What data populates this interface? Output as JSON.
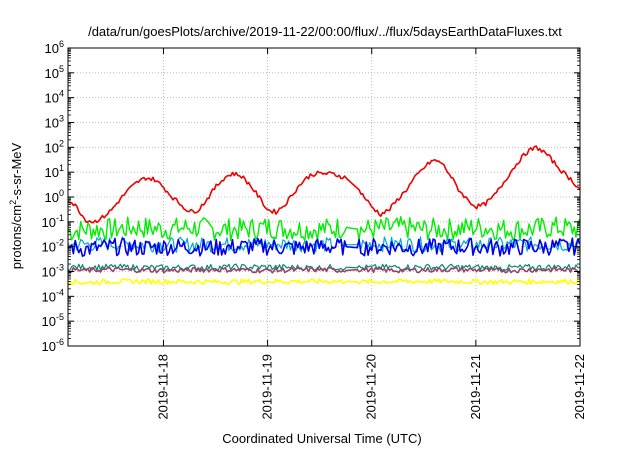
{
  "chart_data": {
    "type": "line",
    "title": "/data/run/goesPlots/archive/2019-11-22/00:00/flux/../flux/5daysEarthDataFluxes.txt",
    "xlabel": "Coordinated Universal Time (UTC)",
    "ylabel": {
      "base": "protons/cm",
      "sup": "2",
      "rest": "-s-sr-MeV"
    },
    "x_scale": "time",
    "xlim": [
      "2019-11-17T02:00",
      "2019-11-22T00:00"
    ],
    "x_ticks": [
      "2019-11-18",
      "2019-11-19",
      "2019-11-20",
      "2019-11-21",
      "2019-11-22"
    ],
    "y_scale": "log",
    "ylim": [
      1e-06,
      1000000.0
    ],
    "y_ticks": [
      {
        "value": 1e-06,
        "base": "10",
        "exp": "-6"
      },
      {
        "value": 1e-05,
        "base": "10",
        "exp": "-5"
      },
      {
        "value": 0.0001,
        "base": "10",
        "exp": "-4"
      },
      {
        "value": 0.001,
        "base": "10",
        "exp": "-3"
      },
      {
        "value": 0.01,
        "base": "10",
        "exp": "-2"
      },
      {
        "value": 0.1,
        "base": "10",
        "exp": "-1"
      },
      {
        "value": 1,
        "base": "10",
        "exp": "0"
      },
      {
        "value": 10,
        "base": "10",
        "exp": "1"
      },
      {
        "value": 100,
        "base": "10",
        "exp": "2"
      },
      {
        "value": 1000,
        "base": "10",
        "exp": "3"
      },
      {
        "value": 10000,
        "base": "10",
        "exp": "4"
      },
      {
        "value": 100000,
        "base": "10",
        "exp": "5"
      },
      {
        "value": 1000000,
        "base": "10",
        "exp": "6"
      }
    ],
    "grid": true,
    "gap": [
      "2019-11-19T18:00",
      "2019-11-19T21:00"
    ],
    "series": [
      {
        "color": "#00ee00",
        "width": 1.4,
        "points": [
          [
            "2019-11-17T02:00",
            0.04
          ],
          [
            "2019-11-17T06:00",
            0.05
          ],
          [
            "2019-11-17T12:00",
            0.05
          ],
          [
            "2019-11-17T18:00",
            0.06
          ],
          [
            "2019-11-18T00:00",
            0.05
          ],
          [
            "2019-11-18T06:00",
            0.06
          ],
          [
            "2019-11-18T12:00",
            0.05
          ],
          [
            "2019-11-18T18:00",
            0.05
          ],
          [
            "2019-11-19T00:00",
            0.06
          ],
          [
            "2019-11-19T06:00",
            0.05
          ],
          [
            "2019-11-19T12:00",
            0.05
          ],
          [
            "2019-11-19T18:00",
            0.06
          ],
          [
            "2019-11-19T21:00",
            0.05
          ],
          [
            "2019-11-20T00:00",
            0.05
          ],
          [
            "2019-11-20T06:00",
            0.06
          ],
          [
            "2019-11-20T12:00",
            0.05
          ],
          [
            "2019-11-20T18:00",
            0.05
          ],
          [
            "2019-11-21T00:00",
            0.06
          ],
          [
            "2019-11-21T06:00",
            0.05
          ],
          [
            "2019-11-21T12:00",
            0.05
          ],
          [
            "2019-11-21T18:00",
            0.06
          ],
          [
            "2019-11-22T00:00",
            0.05
          ]
        ]
      },
      {
        "color": "#00aacc",
        "width": 1.2,
        "points": [
          [
            "2019-11-17T02:00",
            0.012
          ],
          [
            "2019-11-17T12:00",
            0.013
          ],
          [
            "2019-11-18T00:00",
            0.012
          ],
          [
            "2019-11-18T12:00",
            0.012
          ],
          [
            "2019-11-19T00:00",
            0.013
          ],
          [
            "2019-11-19T12:00",
            0.012
          ],
          [
            "2019-11-19T18:00",
            0.012
          ],
          [
            "2019-11-19T21:00",
            0.012
          ],
          [
            "2019-11-20T06:00",
            0.013
          ],
          [
            "2019-11-20T18:00",
            0.012
          ],
          [
            "2019-11-21T06:00",
            0.012
          ],
          [
            "2019-11-21T18:00",
            0.013
          ],
          [
            "2019-11-22T00:00",
            0.012
          ]
        ]
      },
      {
        "color": "#0000ee",
        "width": 1.6,
        "points": [
          [
            "2019-11-17T02:00",
            0.01
          ],
          [
            "2019-11-17T06:00",
            0.008
          ],
          [
            "2019-11-17T12:00",
            0.01
          ],
          [
            "2019-11-17T18:00",
            0.009
          ],
          [
            "2019-11-18T00:00",
            0.01
          ],
          [
            "2019-11-18T06:00",
            0.01
          ],
          [
            "2019-11-18T12:00",
            0.009
          ],
          [
            "2019-11-18T18:00",
            0.01
          ],
          [
            "2019-11-19T00:00",
            0.01
          ],
          [
            "2019-11-19T06:00",
            0.009
          ],
          [
            "2019-11-19T12:00",
            0.01
          ],
          [
            "2019-11-19T18:00",
            0.01
          ],
          [
            "2019-11-19T21:00",
            0.009
          ],
          [
            "2019-11-20T00:00",
            0.01
          ],
          [
            "2019-11-20T06:00",
            0.01
          ],
          [
            "2019-11-20T12:00",
            0.009
          ],
          [
            "2019-11-20T18:00",
            0.01
          ],
          [
            "2019-11-21T00:00",
            0.01
          ],
          [
            "2019-11-21T06:00",
            0.009
          ],
          [
            "2019-11-21T12:00",
            0.01
          ],
          [
            "2019-11-21T18:00",
            0.01
          ],
          [
            "2019-11-22T00:00",
            0.01
          ]
        ]
      },
      {
        "color": "#008877",
        "width": 1.2,
        "points": [
          [
            "2019-11-17T02:00",
            0.0015
          ],
          [
            "2019-11-17T12:00",
            0.0015
          ],
          [
            "2019-11-18T00:00",
            0.0014
          ],
          [
            "2019-11-18T12:00",
            0.0015
          ],
          [
            "2019-11-19T00:00",
            0.0015
          ],
          [
            "2019-11-19T12:00",
            0.0014
          ],
          [
            "2019-11-19T18:00",
            0.0015
          ],
          [
            "2019-11-19T21:00",
            0.0014
          ],
          [
            "2019-11-20T06:00",
            0.0015
          ],
          [
            "2019-11-20T18:00",
            0.0015
          ],
          [
            "2019-11-21T06:00",
            0.0014
          ],
          [
            "2019-11-21T18:00",
            0.0015
          ],
          [
            "2019-11-22T00:00",
            0.0015
          ]
        ]
      },
      {
        "color": "#ffff00",
        "width": 1.6,
        "points": [
          [
            "2019-11-17T02:00",
            0.0004
          ],
          [
            "2019-11-17T06:00",
            0.00035
          ],
          [
            "2019-11-17T12:00",
            0.0004
          ],
          [
            "2019-11-18T00:00",
            0.0004
          ],
          [
            "2019-11-18T12:00",
            0.00038
          ],
          [
            "2019-11-19T00:00",
            0.0004
          ],
          [
            "2019-11-19T12:00",
            0.0004
          ],
          [
            "2019-11-19T18:00",
            0.0004
          ],
          [
            "2019-11-19T21:00",
            0.00038
          ],
          [
            "2019-11-20T06:00",
            0.0004
          ],
          [
            "2019-11-20T18:00",
            0.0004
          ],
          [
            "2019-11-21T06:00",
            0.00038
          ],
          [
            "2019-11-21T18:00",
            0.0004
          ],
          [
            "2019-11-22T00:00",
            0.0004
          ]
        ]
      },
      {
        "color": "#994466",
        "width": 1.6,
        "points": [
          [
            "2019-11-17T02:00",
            0.0012
          ],
          [
            "2019-11-17T06:00",
            0.0011
          ],
          [
            "2019-11-17T12:00",
            0.0012
          ],
          [
            "2019-11-18T00:00",
            0.0011
          ],
          [
            "2019-11-18T12:00",
            0.0012
          ],
          [
            "2019-11-19T00:00",
            0.0011
          ],
          [
            "2019-11-19T12:00",
            0.0012
          ],
          [
            "2019-11-19T18:00",
            0.0011
          ],
          [
            "2019-11-19T21:00",
            0.0012
          ],
          [
            "2019-11-20T06:00",
            0.0011
          ],
          [
            "2019-11-20T18:00",
            0.0012
          ],
          [
            "2019-11-21T06:00",
            0.0011
          ],
          [
            "2019-11-21T18:00",
            0.0012
          ],
          [
            "2019-11-22T00:00",
            0.0011
          ]
        ]
      },
      {
        "color": "#ee0000",
        "width": 1.6,
        "points": [
          [
            "2019-11-17T02:00",
            0.8
          ],
          [
            "2019-11-17T04:00",
            0.4
          ],
          [
            "2019-11-17T06:00",
            0.12
          ],
          [
            "2019-11-17T08:00",
            0.1
          ],
          [
            "2019-11-17T10:00",
            0.15
          ],
          [
            "2019-11-17T12:00",
            0.3
          ],
          [
            "2019-11-17T14:00",
            0.8
          ],
          [
            "2019-11-17T16:00",
            2.0
          ],
          [
            "2019-11-17T18:00",
            4.0
          ],
          [
            "2019-11-17T20:00",
            6.0
          ],
          [
            "2019-11-17T22:00",
            5.0
          ],
          [
            "2019-11-18T00:00",
            2.5
          ],
          [
            "2019-11-18T02:00",
            1.0
          ],
          [
            "2019-11-18T04:00",
            0.5
          ],
          [
            "2019-11-18T06:00",
            0.25
          ],
          [
            "2019-11-18T08:00",
            0.3
          ],
          [
            "2019-11-18T10:00",
            0.8
          ],
          [
            "2019-11-18T12:00",
            2.5
          ],
          [
            "2019-11-18T14:00",
            6.0
          ],
          [
            "2019-11-18T16:00",
            9.0
          ],
          [
            "2019-11-18T18:00",
            7.0
          ],
          [
            "2019-11-18T20:00",
            3.0
          ],
          [
            "2019-11-18T22:00",
            1.0
          ],
          [
            "2019-11-19T00:00",
            0.3
          ],
          [
            "2019-11-19T02:00",
            0.25
          ],
          [
            "2019-11-19T04:00",
            0.5
          ],
          [
            "2019-11-19T06:00",
            1.5
          ],
          [
            "2019-11-19T08:00",
            4.0
          ],
          [
            "2019-11-19T10:00",
            8.0
          ],
          [
            "2019-11-19T12:00",
            9.0
          ],
          [
            "2019-11-19T15:00",
            8.5
          ],
          [
            "2019-11-19T18:00",
            6.0
          ],
          [
            "2019-11-19T21:00",
            2.0
          ],
          [
            "2019-11-20T00:00",
            0.4
          ],
          [
            "2019-11-20T02:00",
            0.2
          ],
          [
            "2019-11-20T04:00",
            0.3
          ],
          [
            "2019-11-20T06:00",
            0.8
          ],
          [
            "2019-11-20T08:00",
            2.0
          ],
          [
            "2019-11-20T10:00",
            6.0
          ],
          [
            "2019-11-20T12:00",
            15.0
          ],
          [
            "2019-11-20T14:00",
            30.0
          ],
          [
            "2019-11-20T16:00",
            25.0
          ],
          [
            "2019-11-20T18:00",
            8.0
          ],
          [
            "2019-11-20T20:00",
            2.0
          ],
          [
            "2019-11-20T22:00",
            0.8
          ],
          [
            "2019-11-21T00:00",
            0.4
          ],
          [
            "2019-11-21T02:00",
            0.5
          ],
          [
            "2019-11-21T04:00",
            1.0
          ],
          [
            "2019-11-21T06:00",
            3.0
          ],
          [
            "2019-11-21T08:00",
            10.0
          ],
          [
            "2019-11-21T10:00",
            30.0
          ],
          [
            "2019-11-21T12:00",
            70.0
          ],
          [
            "2019-11-21T14:00",
            100.0
          ],
          [
            "2019-11-21T16:00",
            60.0
          ],
          [
            "2019-11-21T18:00",
            25.0
          ],
          [
            "2019-11-21T20:00",
            10.0
          ],
          [
            "2019-11-21T22:00",
            5.0
          ],
          [
            "2019-11-22T00:00",
            2.0
          ]
        ]
      }
    ]
  }
}
